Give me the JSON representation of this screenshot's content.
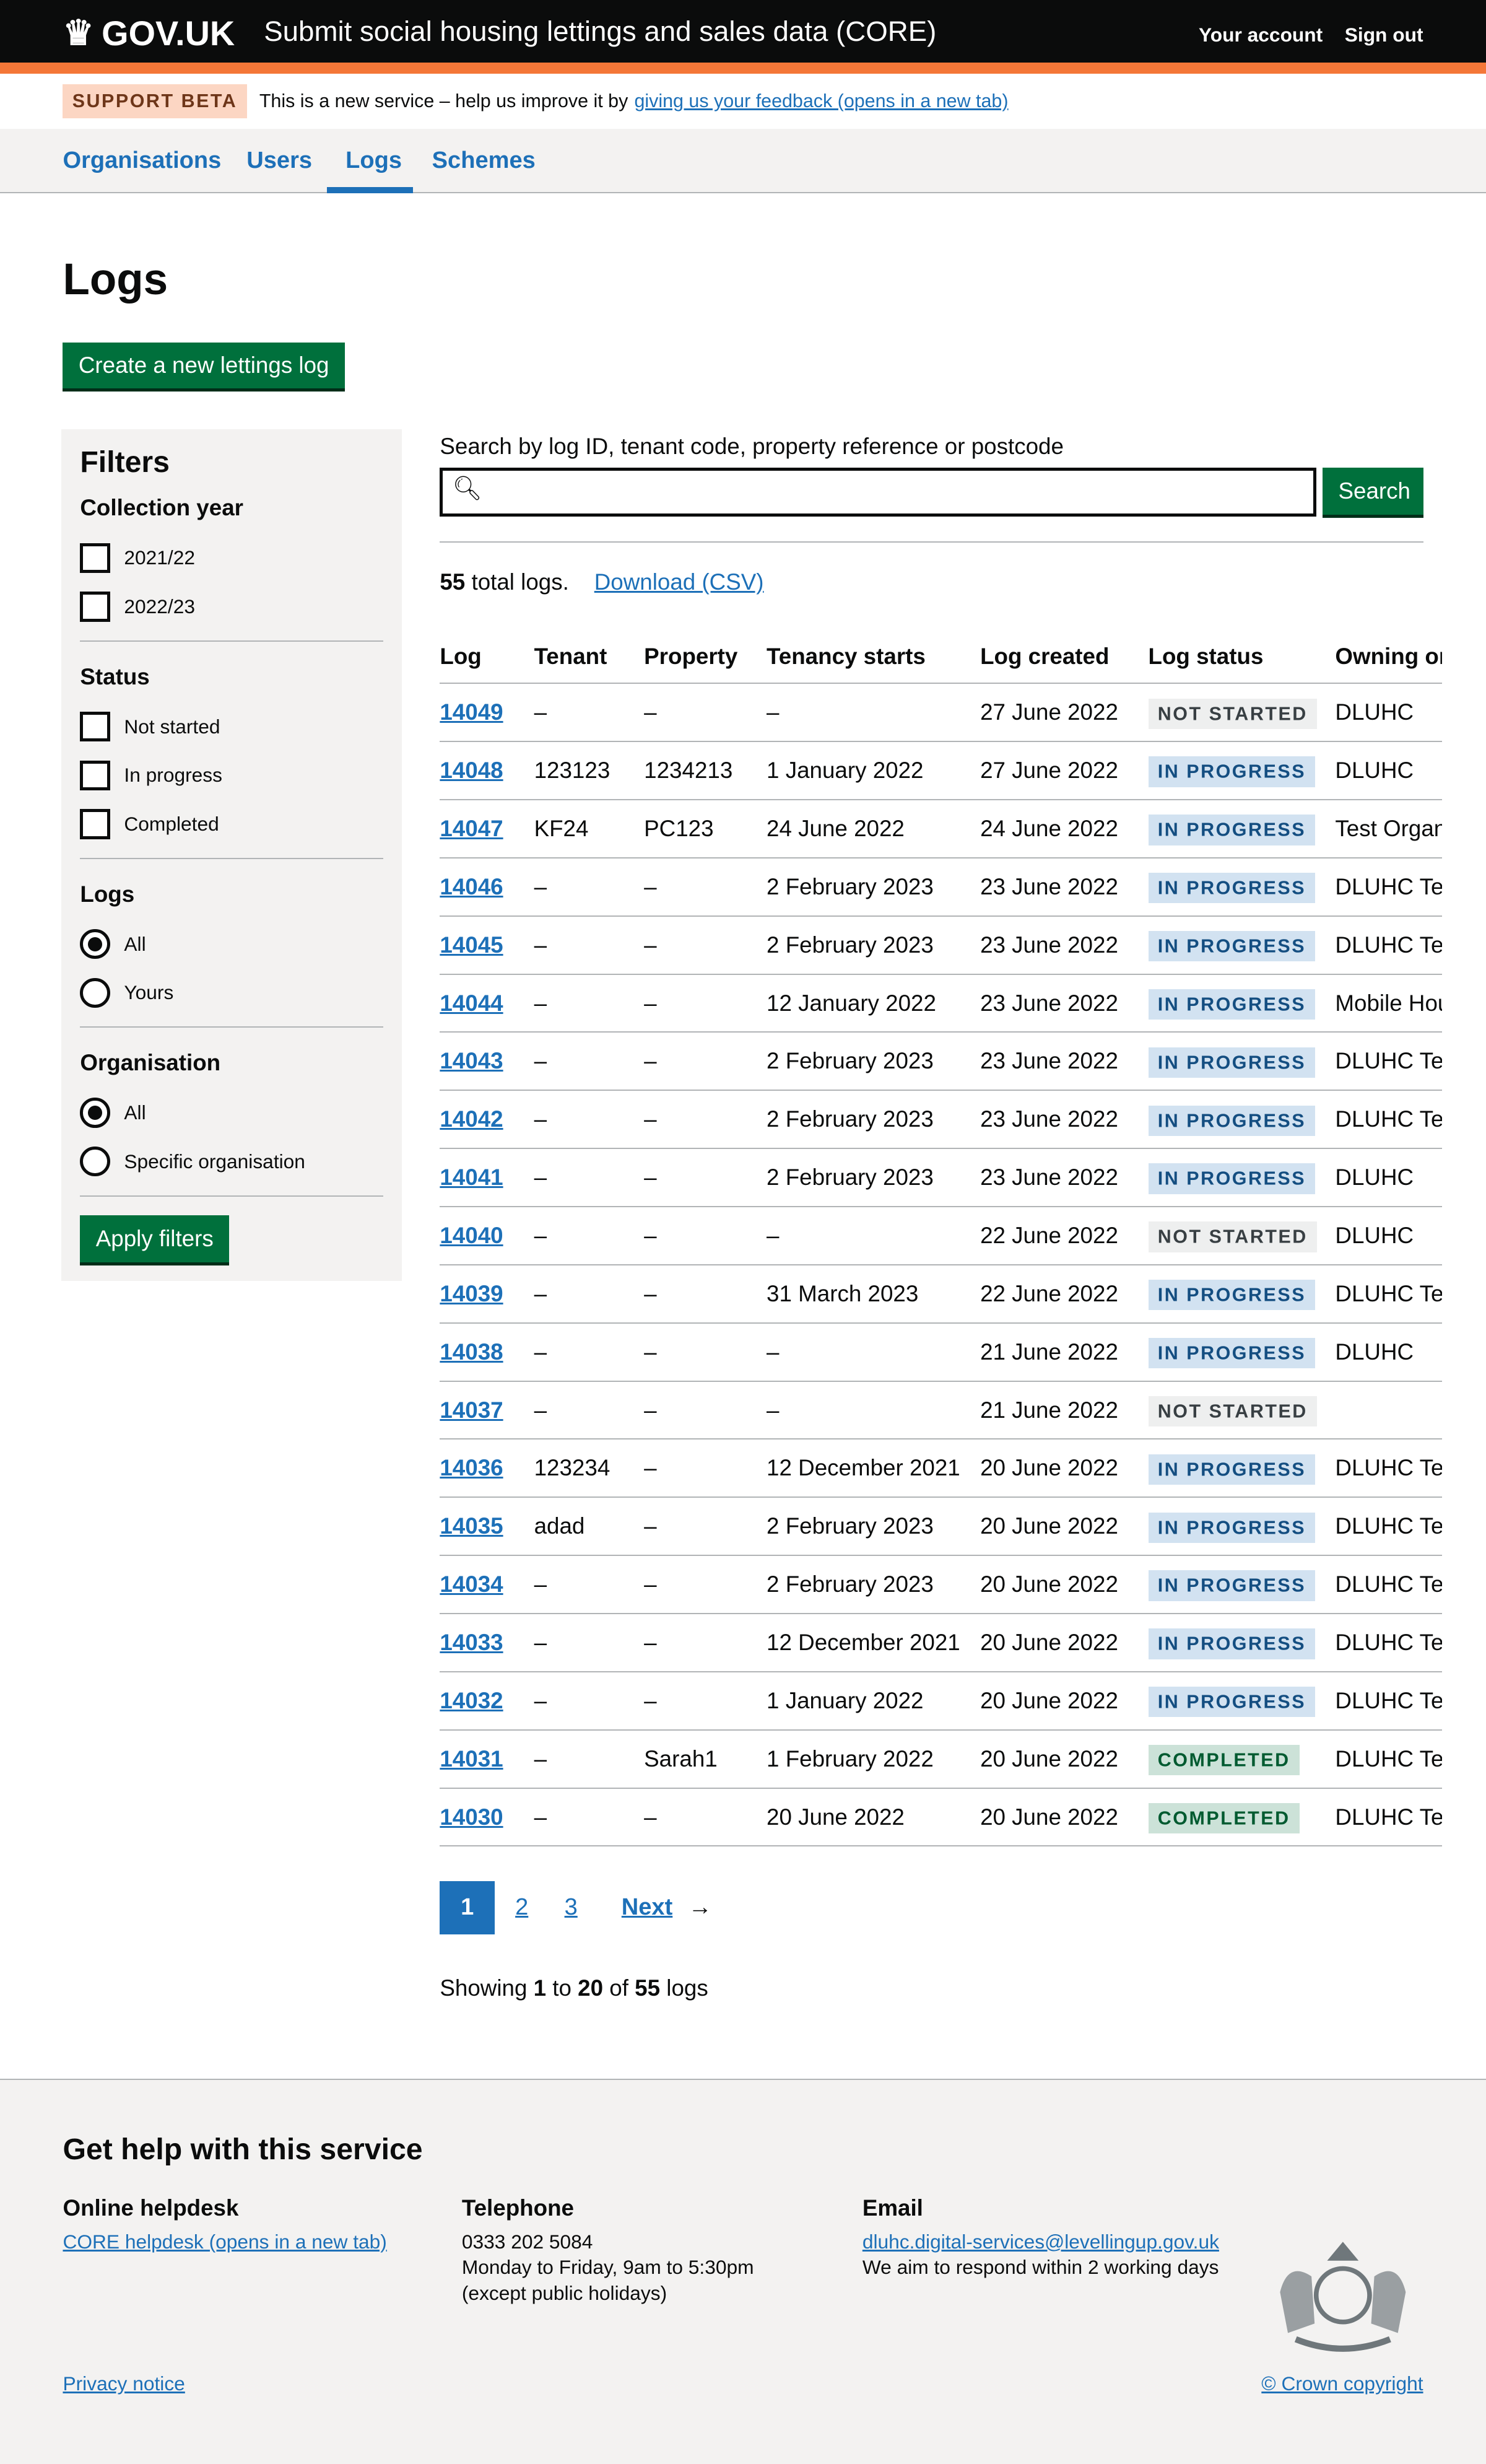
{
  "header": {
    "logo": "GOV.UK",
    "service": "Submit social housing lettings and sales data (CORE)",
    "links": [
      "Your account",
      "Sign out"
    ]
  },
  "banner": {
    "tag": "SUPPORT BETA",
    "text": "This is a new service – help us improve it by",
    "link": "giving us your feedback (opens in a new tab)"
  },
  "nav": {
    "items": [
      "Organisations",
      "Users",
      "Logs",
      "Schemes"
    ],
    "active": "Logs"
  },
  "page": {
    "title": "Logs",
    "create_button": "Create a new lettings log"
  },
  "filters": {
    "title": "Filters",
    "collection_year": {
      "label": "Collection year",
      "options": [
        "2021/22",
        "2022/23"
      ]
    },
    "status": {
      "label": "Status",
      "options": [
        "Not started",
        "In progress",
        "Completed"
      ]
    },
    "logs": {
      "label": "Logs",
      "options": [
        "All",
        "Yours"
      ],
      "selected": "All"
    },
    "organisation": {
      "label": "Organisation",
      "options": [
        "All",
        "Specific organisation"
      ],
      "selected": "All"
    },
    "apply": "Apply filters"
  },
  "search": {
    "label": "Search by log ID, tenant code, property reference or postcode",
    "value": "",
    "button": "Search"
  },
  "summary": {
    "count": "55",
    "text": " total logs.",
    "download": "Download (CSV)"
  },
  "table": {
    "headers": [
      "Log",
      "Tenant",
      "Property",
      "Tenancy starts",
      "Log created",
      "Log status",
      "Owning or"
    ],
    "rows": [
      [
        "14049",
        "–",
        "–",
        "–",
        "27 June 2022",
        "NOT STARTED",
        "DLUHC"
      ],
      [
        "14048",
        "123123",
        "1234213",
        "1 January 2022",
        "27 June 2022",
        "IN PROGRESS",
        "DLUHC"
      ],
      [
        "14047",
        "KF24",
        "PC123",
        "24 June 2022",
        "24 June 2022",
        "IN PROGRESS",
        "Test Organ"
      ],
      [
        "14046",
        "–",
        "–",
        "2 February 2023",
        "23 June 2022",
        "IN PROGRESS",
        "DLUHC Tes"
      ],
      [
        "14045",
        "–",
        "–",
        "2 February 2023",
        "23 June 2022",
        "IN PROGRESS",
        "DLUHC Tes"
      ],
      [
        "14044",
        "–",
        "–",
        "12 January 2022",
        "23 June 2022",
        "IN PROGRESS",
        "Mobile Hou"
      ],
      [
        "14043",
        "–",
        "–",
        "2 February 2023",
        "23 June 2022",
        "IN PROGRESS",
        "DLUHC Tes"
      ],
      [
        "14042",
        "–",
        "–",
        "2 February 2023",
        "23 June 2022",
        "IN PROGRESS",
        "DLUHC Tes"
      ],
      [
        "14041",
        "–",
        "–",
        "2 February 2023",
        "23 June 2022",
        "IN PROGRESS",
        "DLUHC"
      ],
      [
        "14040",
        "–",
        "–",
        "–",
        "22 June 2022",
        "NOT STARTED",
        "DLUHC"
      ],
      [
        "14039",
        "–",
        "–",
        "31 March 2023",
        "22 June 2022",
        "IN PROGRESS",
        "DLUHC Tes"
      ],
      [
        "14038",
        "–",
        "–",
        "–",
        "21 June 2022",
        "IN PROGRESS",
        "DLUHC"
      ],
      [
        "14037",
        "–",
        "–",
        "–",
        "21 June 2022",
        "NOT STARTED",
        ""
      ],
      [
        "14036",
        "123234",
        "–",
        "12 December 2021",
        "20 June 2022",
        "IN PROGRESS",
        "DLUHC Tes"
      ],
      [
        "14035",
        "adad",
        "–",
        "2 February 2023",
        "20 June 2022",
        "IN PROGRESS",
        "DLUHC Tes"
      ],
      [
        "14034",
        "–",
        "–",
        "2 February 2023",
        "20 June 2022",
        "IN PROGRESS",
        "DLUHC Tes"
      ],
      [
        "14033",
        "–",
        "–",
        "12 December 2021",
        "20 June 2022",
        "IN PROGRESS",
        "DLUHC Tes"
      ],
      [
        "14032",
        "–",
        "–",
        "1 January 2022",
        "20 June 2022",
        "IN PROGRESS",
        "DLUHC Tes"
      ],
      [
        "14031",
        "–",
        "Sarah1",
        "1 February 2022",
        "20 June 2022",
        "COMPLETED",
        "DLUHC Tes"
      ],
      [
        "14030",
        "–",
        "–",
        "20 June 2022",
        "20 June 2022",
        "COMPLETED",
        "DLUHC Tes"
      ]
    ]
  },
  "pagination": {
    "pages": [
      "1",
      "2",
      "3"
    ],
    "current": "1",
    "next": "Next"
  },
  "showing": {
    "prefix": "Showing ",
    "from": "1",
    "to_word": " to ",
    "to": "20",
    "of_word": " of ",
    "total": "55",
    "suffix": " logs"
  },
  "footer": {
    "title": "Get help with this service",
    "helpdesk": {
      "title": "Online helpdesk",
      "link": "CORE helpdesk (opens in a new tab)"
    },
    "telephone": {
      "title": "Telephone",
      "number": "0333 202 5084",
      "hours": "Monday to Friday, 9am to 5:30pm",
      "note": "(except public holidays)"
    },
    "email": {
      "title": "Email",
      "address": "dluhc.digital-services@levellingup.gov.uk",
      "note": "We aim to respond within 2 working days"
    },
    "privacy": "Privacy notice",
    "copyright": "© Crown copyright"
  },
  "colors": {
    "header": "#0b0c0c",
    "accent": "#f47738",
    "link": "#1d70b8",
    "button": "#00703c"
  }
}
